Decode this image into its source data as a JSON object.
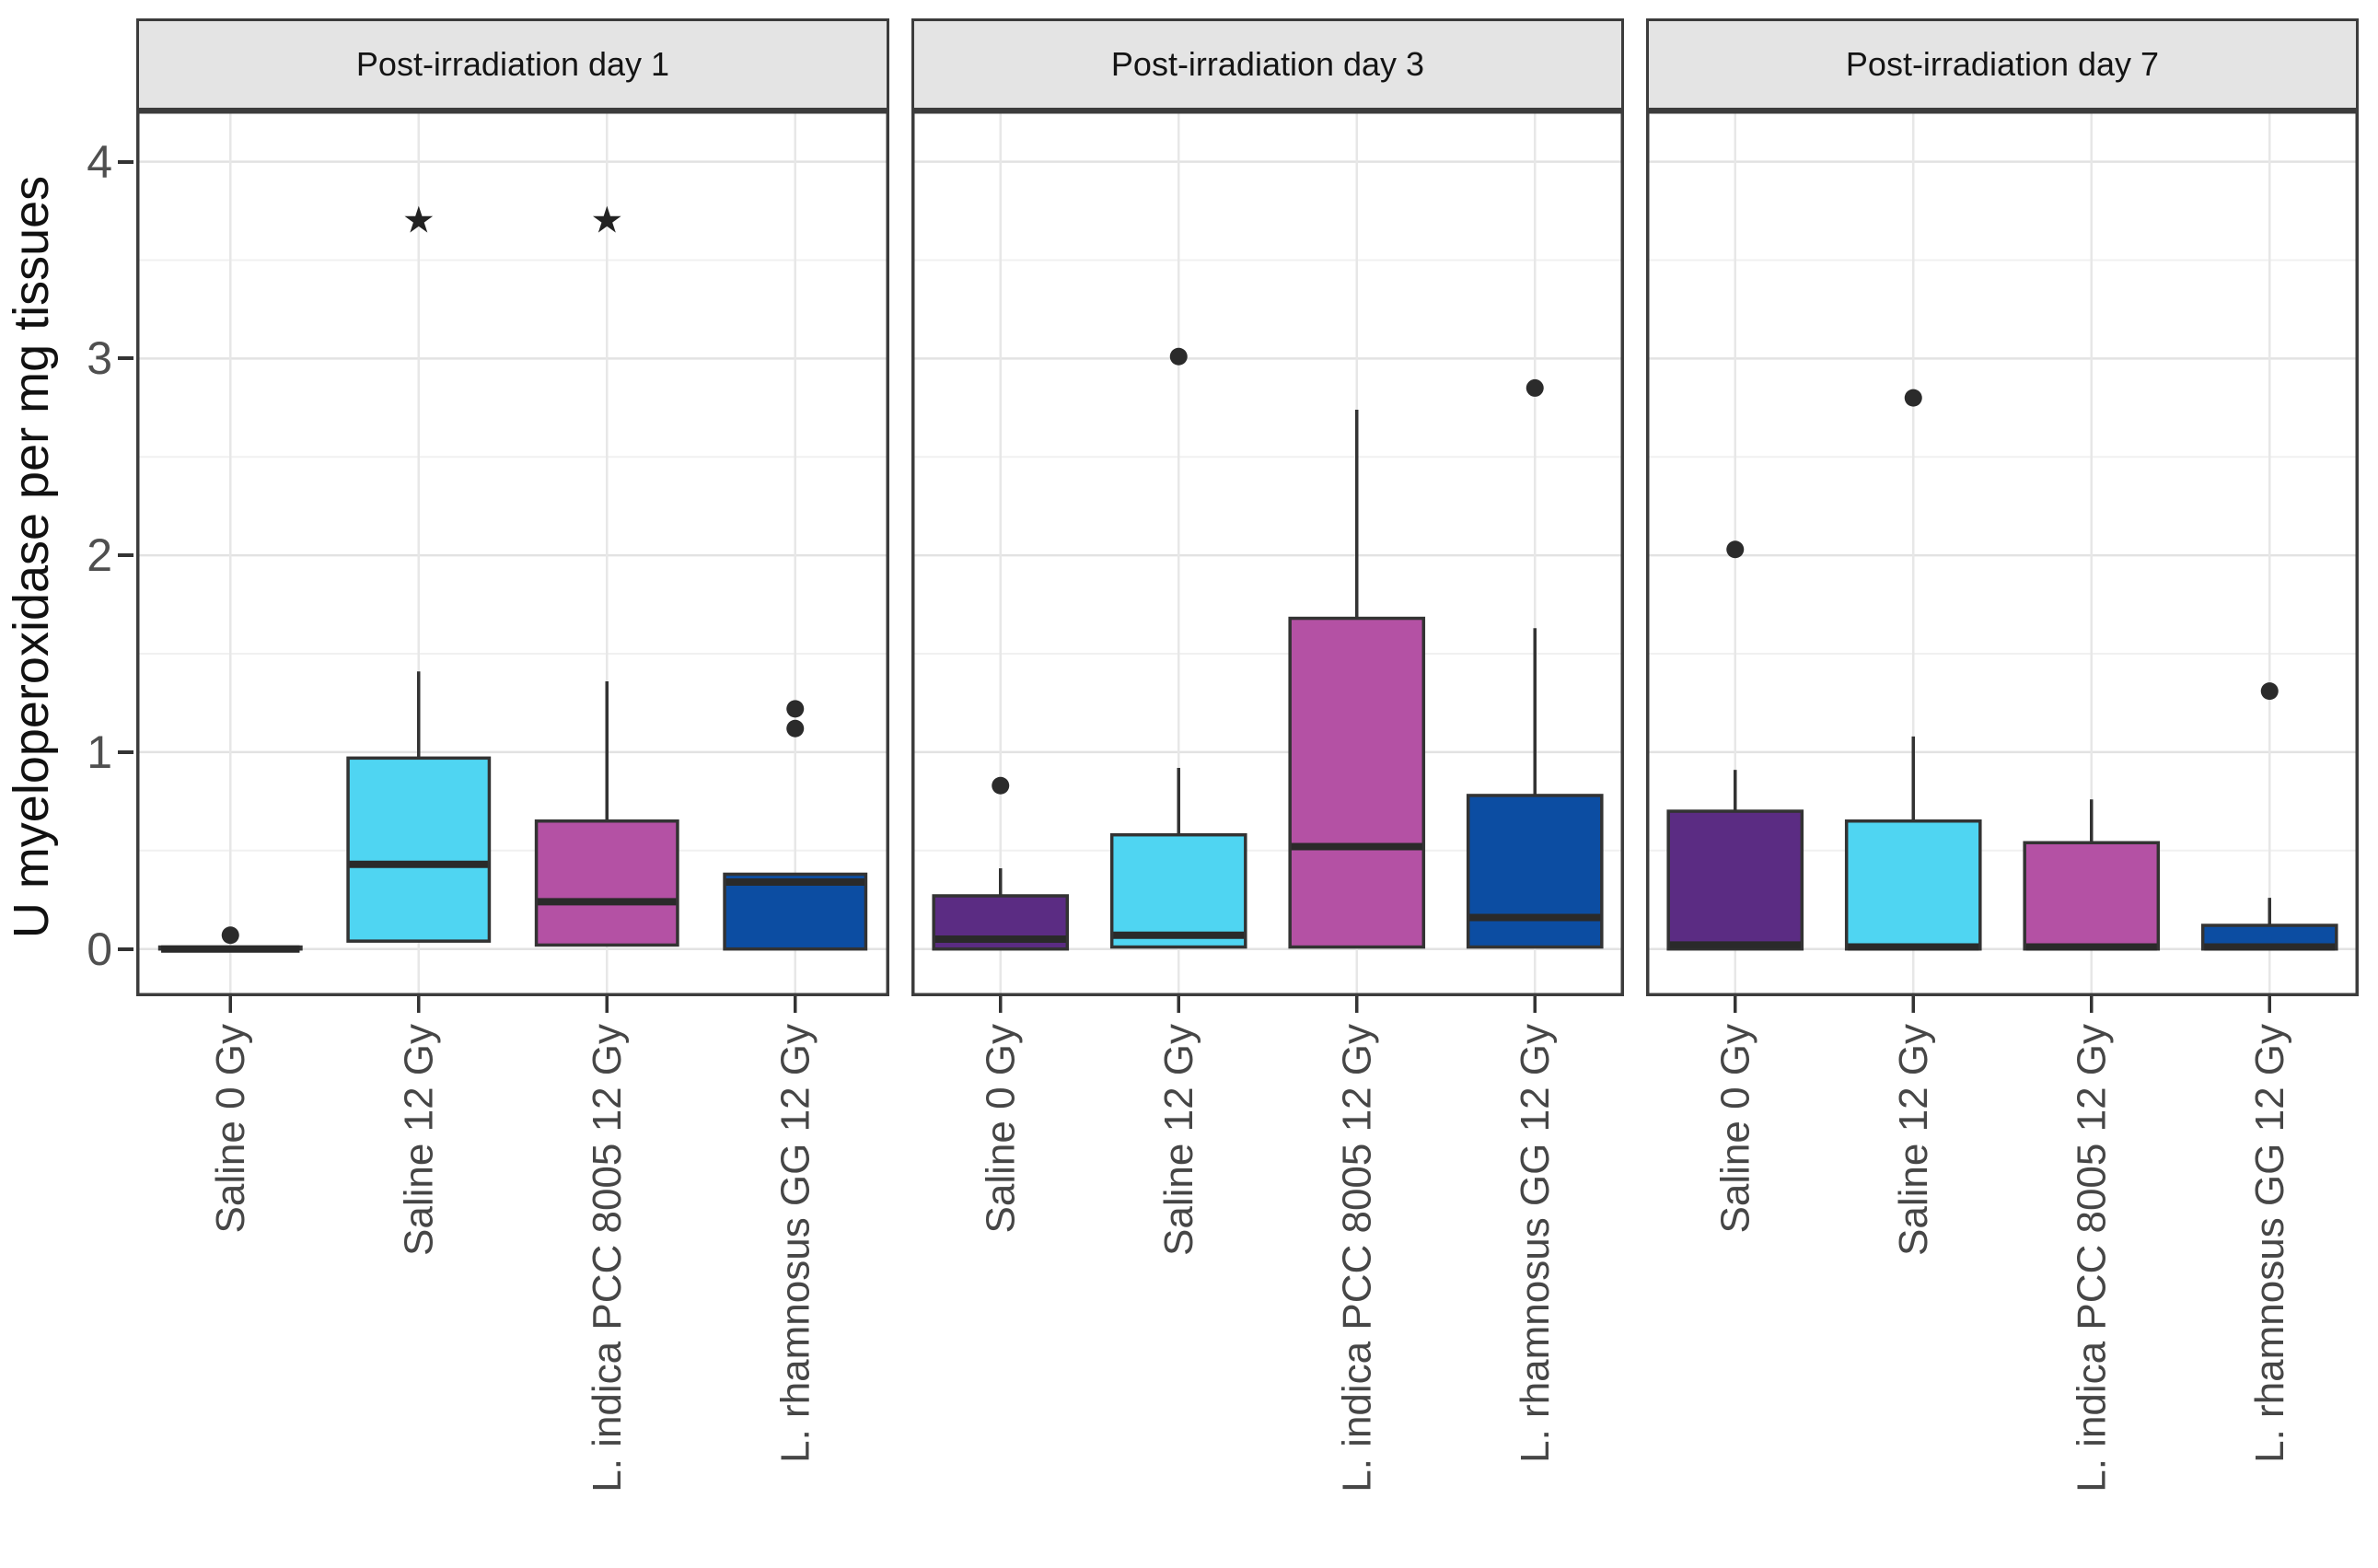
{
  "figure": {
    "ylabel": "U myeloperoxidase per mg tissues"
  },
  "chart_data": {
    "type": "boxplot",
    "facet_titles": [
      "Post-irradiation day 1",
      "Post-irradiation day 3",
      "Post-irradiation day 7"
    ],
    "ylabel": "U myeloperoxidase per mg tissues",
    "ylim": [
      -0.24,
      4.26
    ],
    "yticks": [
      0,
      1,
      2,
      3,
      4
    ],
    "ytick_labels": [
      "0",
      "1",
      "2",
      "3",
      "4"
    ],
    "minor_gridlines": [
      0.5,
      1.5,
      2.5,
      3.5
    ],
    "grid": "on",
    "legend": "none",
    "categories": [
      "Saline 0 Gy",
      "Saline 12 Gy",
      "L. indica PCC 8005 12 Gy",
      "L. rhamnosus GG 12 Gy"
    ],
    "category_colors": [
      "#5B2C83",
      "#4FD5F2",
      "#B451A4",
      "#0C4DA2"
    ],
    "style": {
      "box_border": "#333333",
      "median_line": "#2A2A2A",
      "outlier_fill": "#2B2B2B",
      "panel_border": "#3C3C3C",
      "strip_background": "#E4E4E4",
      "strip_border": "#3C3C3C",
      "strip_text": "#141414",
      "grid_major": "#E2E2E2",
      "grid_minor": "#F0F0F0",
      "grid_vertical": "#E7E7E7",
      "axis_tick": "#333333",
      "x_label_text": "#464646",
      "y_label_text": "#4F4F4F",
      "annotation_color": "#222222"
    },
    "panels": [
      {
        "title": "Post-irradiation day 1",
        "boxes": [
          {
            "category": "Saline 0 Gy",
            "whisker_low": 0,
            "q1": 0,
            "median": 0,
            "q3": 0.01,
            "whisker_high": 0.01,
            "outliers": [
              0.07
            ]
          },
          {
            "category": "Saline 12 Gy",
            "whisker_low": 0.04,
            "q1": 0.04,
            "median": 0.43,
            "q3": 0.97,
            "whisker_high": 1.41,
            "outliers": []
          },
          {
            "category": "L. indica PCC 8005 12 Gy",
            "whisker_low": 0.02,
            "q1": 0.02,
            "median": 0.24,
            "q3": 0.65,
            "whisker_high": 1.36,
            "outliers": []
          },
          {
            "category": "L. rhamnosus GG 12 Gy",
            "whisker_low": 0,
            "q1": 0,
            "median": 0.34,
            "q3": 0.38,
            "whisker_high": 0.38,
            "outliers": [
              1.12,
              1.22
            ]
          }
        ],
        "annotations": [
          {
            "text": "★",
            "meaning": "*",
            "category_index": 1,
            "y": 3.7
          },
          {
            "text": "★",
            "meaning": "*",
            "category_index": 2,
            "y": 3.7
          }
        ]
      },
      {
        "title": "Post-irradiation day 3",
        "boxes": [
          {
            "category": "Saline 0 Gy",
            "whisker_low": 0,
            "q1": 0,
            "median": 0.05,
            "q3": 0.27,
            "whisker_high": 0.41,
            "outliers": [
              0.83
            ]
          },
          {
            "category": "Saline 12 Gy",
            "whisker_low": 0.01,
            "q1": 0.01,
            "median": 0.07,
            "q3": 0.58,
            "whisker_high": 0.92,
            "outliers": [
              3.01
            ]
          },
          {
            "category": "L. indica PCC 8005 12 Gy",
            "whisker_low": 0.01,
            "q1": 0.01,
            "median": 0.52,
            "q3": 1.68,
            "whisker_high": 2.74,
            "outliers": []
          },
          {
            "category": "L. rhamnosus GG 12 Gy",
            "whisker_low": 0.01,
            "q1": 0.01,
            "median": 0.16,
            "q3": 0.78,
            "whisker_high": 1.63,
            "outliers": [
              2.85
            ]
          }
        ],
        "annotations": []
      },
      {
        "title": "Post-irradiation day 7",
        "boxes": [
          {
            "category": "Saline 0 Gy",
            "whisker_low": 0,
            "q1": 0,
            "median": 0.02,
            "q3": 0.7,
            "whisker_high": 0.91,
            "outliers": [
              2.03
            ]
          },
          {
            "category": "Saline 12 Gy",
            "whisker_low": 0,
            "q1": 0,
            "median": 0.01,
            "q3": 0.65,
            "whisker_high": 1.08,
            "outliers": [
              2.8
            ]
          },
          {
            "category": "L. indica PCC 8005 12 Gy",
            "whisker_low": 0,
            "q1": 0,
            "median": 0.01,
            "q3": 0.54,
            "whisker_high": 0.76,
            "outliers": []
          },
          {
            "category": "L. rhamnosus GG 12 Gy",
            "whisker_low": 0,
            "q1": 0,
            "median": 0.01,
            "q3": 0.12,
            "whisker_high": 0.26,
            "outliers": [
              1.31
            ]
          }
        ],
        "annotations": []
      }
    ]
  }
}
